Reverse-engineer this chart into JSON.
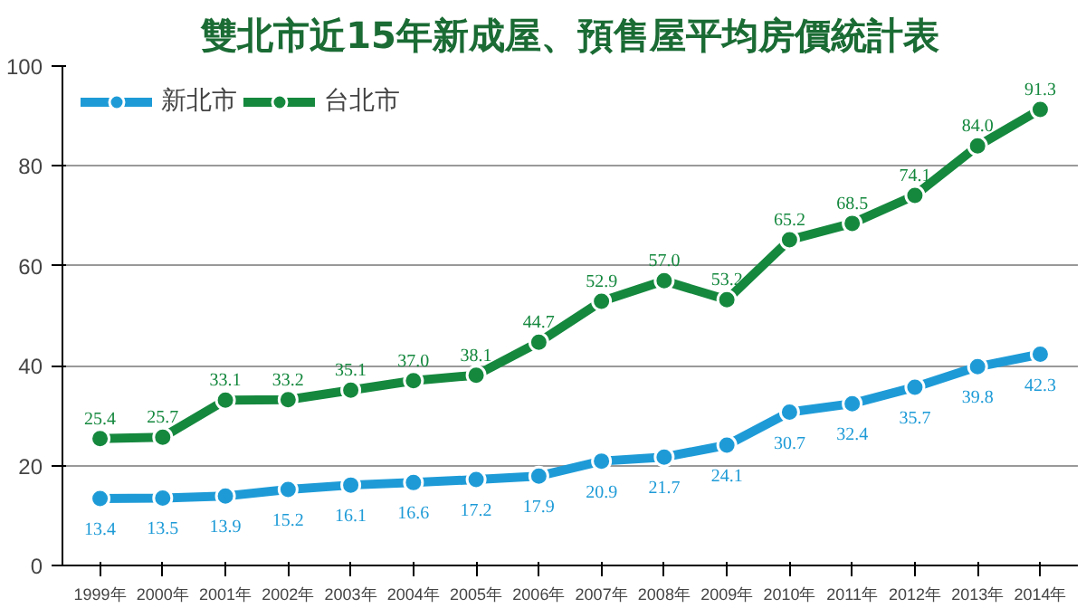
{
  "chart_data": {
    "type": "line",
    "title": "雙北市近15年新成屋、預售屋平均房價統計表",
    "categories": [
      "1999年",
      "2000年",
      "2001年",
      "2002年",
      "2003年",
      "2004年",
      "2005年",
      "2006年",
      "2007年",
      "2008年",
      "2009年",
      "2010年",
      "2011年",
      "2012年",
      "2013年",
      "2014年"
    ],
    "series": [
      {
        "name": "新北市",
        "color": "#1e9bd7",
        "values": [
          13.4,
          13.5,
          13.9,
          15.2,
          16.1,
          16.6,
          17.2,
          17.9,
          20.9,
          21.7,
          24.1,
          30.7,
          32.4,
          35.7,
          39.8,
          42.3
        ]
      },
      {
        "name": "台北市",
        "color": "#15883e",
        "values": [
          25.4,
          25.7,
          33.1,
          33.2,
          35.1,
          37.0,
          38.1,
          44.7,
          52.9,
          57.0,
          53.2,
          65.2,
          68.5,
          74.1,
          84.0,
          91.3
        ],
        "value_labels": [
          "25.4",
          "25.7",
          "33.1",
          "33.2",
          "35.1",
          "37.0",
          "38.1",
          "44.7",
          "52.9",
          "57.0",
          "53.2",
          "65.2",
          "68.5",
          "74.1",
          "84.0",
          "91.3"
        ]
      }
    ],
    "ylim": [
      0,
      100
    ],
    "yticks": [
      0,
      20,
      40,
      60,
      80,
      100
    ],
    "grid": "y",
    "legend": "top left",
    "marker": "circle",
    "line_style": "solid",
    "data_labels": true
  }
}
